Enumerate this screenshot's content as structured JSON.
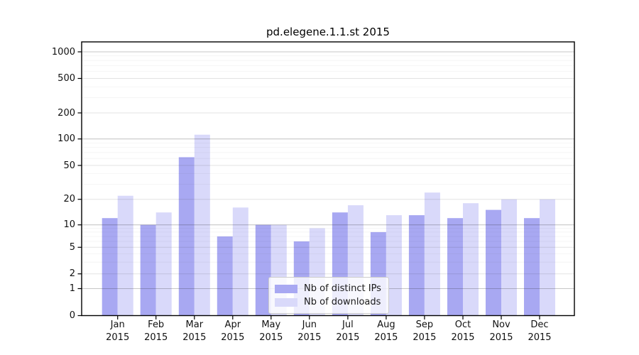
{
  "chart_data": {
    "type": "bar",
    "title": "pd.elegene.1.1.st 2015",
    "categories": [
      "Jan",
      "Feb",
      "Mar",
      "Apr",
      "May",
      "Jun",
      "Jul",
      "Aug",
      "Sep",
      "Oct",
      "Nov",
      "Dec"
    ],
    "year": "2015",
    "series": [
      {
        "name": "Nb of distinct IPs",
        "color": "#a8a8f2",
        "values": [
          12,
          10,
          62,
          7,
          10,
          6,
          14,
          8,
          13,
          12,
          15,
          12
        ]
      },
      {
        "name": "Nb of downloads",
        "color": "#d9d9fa",
        "values": [
          22,
          14,
          112,
          16,
          10,
          9,
          17,
          13,
          24,
          18,
          20,
          20
        ]
      }
    ],
    "yticks": [
      0,
      1,
      2,
      5,
      10,
      20,
      50,
      100,
      200,
      500,
      1000
    ],
    "ylim": [
      0,
      1300
    ],
    "yscale": "symlog",
    "xlabel": "",
    "ylabel": "",
    "grid": "horizontal",
    "legend_position": "lower center inside"
  }
}
